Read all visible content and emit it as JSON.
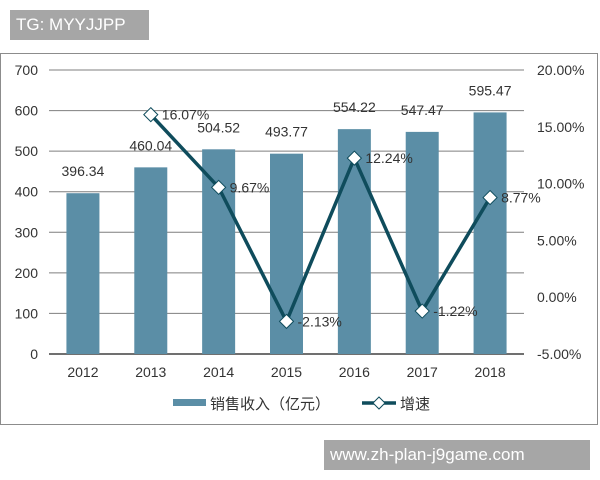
{
  "header": {
    "tag_label": "TG: MYYJJPP"
  },
  "footer": {
    "watermark": "www.zh-plan-j9game.com"
  },
  "colors": {
    "bar": "#5b8ea6",
    "line": "#0f4c5c",
    "grid": "#7f7f7f",
    "text": "#333333"
  },
  "chart_data": {
    "type": "bar+line",
    "title": "",
    "categories": [
      "2012",
      "2013",
      "2014",
      "2015",
      "2016",
      "2017",
      "2018"
    ],
    "series": [
      {
        "name": "销售收入（亿元）",
        "type": "bar",
        "axis": "left",
        "values": [
          396.34,
          460.04,
          504.52,
          493.77,
          554.22,
          547.47,
          595.47
        ],
        "labels": [
          "396.34",
          "460.04",
          "504.52",
          "493.77",
          "554.22",
          "547.47",
          "595.47"
        ]
      },
      {
        "name": "增速",
        "type": "line",
        "axis": "right",
        "marker": "diamond",
        "values": [
          null,
          16.07,
          9.67,
          -2.13,
          12.24,
          -1.22,
          8.77
        ],
        "labels": [
          "",
          "16.07%",
          "9.67%",
          "-2.13%",
          "12.24%",
          "-1.22%",
          "8.77%"
        ]
      }
    ],
    "y_left": {
      "ylim": [
        0,
        700
      ],
      "ticks": [
        "0",
        "100",
        "200",
        "300",
        "400",
        "500",
        "600",
        "700"
      ]
    },
    "y_right": {
      "ylim": [
        -5,
        20
      ],
      "ticks": [
        "-5.00%",
        "0.00%",
        "5.00%",
        "10.00%",
        "15.00%",
        "20.00%"
      ]
    },
    "xlabel": "",
    "ylabel": "",
    "grid": true,
    "legend_position": "bottom"
  }
}
